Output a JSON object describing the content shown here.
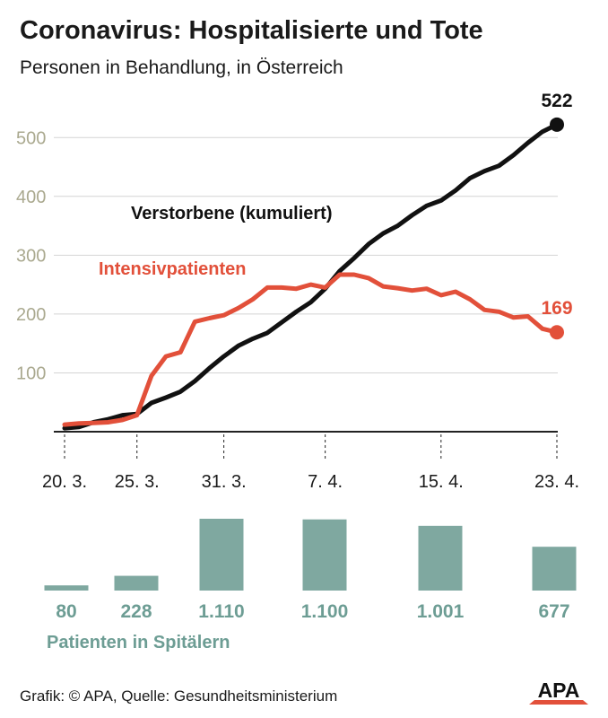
{
  "title": "Coronavirus: Hospitalisierte und Tote",
  "subtitle": "Personen in Behandlung, in Österreich",
  "footer": "Grafik: © APA, Quelle: Gesundheitsministerium",
  "logo_text": "APA",
  "colors": {
    "deaths": "#111111",
    "icu": "#e2503a",
    "bars": "#7fa8a0",
    "bar_label": "#6d9d94",
    "axis_tick": "#aaa98f",
    "grid": "#d4d4d4"
  },
  "chart_data": [
    {
      "type": "line",
      "x": [
        "20.3.",
        "21.3.",
        "22.3.",
        "23.3.",
        "24.3.",
        "25.3.",
        "26.3.",
        "27.3.",
        "28.3.",
        "29.3.",
        "30.3.",
        "31.3.",
        "1.4.",
        "2.4.",
        "3.4.",
        "4.4.",
        "5.4.",
        "6.4.",
        "7.4.",
        "8.4.",
        "9.4.",
        "10.4.",
        "11.4.",
        "12.4.",
        "13.4.",
        "14.4.",
        "15.4.",
        "16.4.",
        "17.4.",
        "18.4.",
        "19.4.",
        "20.4.",
        "21.4.",
        "22.4.",
        "23.4."
      ],
      "x_tick_labels": [
        "20. 3.",
        "25. 3.",
        "31. 3.",
        "7. 4.",
        "15. 4.",
        "23. 4."
      ],
      "x_tick_index": [
        0,
        5,
        11,
        18,
        26,
        34
      ],
      "ylim": [
        0,
        540
      ],
      "y_ticks": [
        100,
        200,
        300,
        400,
        500
      ],
      "grid": true,
      "series": [
        {
          "name": "Verstorbene (kumuliert)",
          "color": "#111111",
          "values": [
            6,
            8,
            16,
            21,
            28,
            30,
            49,
            58,
            68,
            86,
            108,
            128,
            146,
            158,
            168,
            186,
            204,
            220,
            243,
            273,
            295,
            319,
            337,
            350,
            368,
            384,
            393,
            410,
            431,
            443,
            452,
            470,
            491,
            510,
            522
          ],
          "end_label": "522"
        },
        {
          "name": "Intensivpatienten",
          "color": "#e2503a",
          "values": [
            12,
            14,
            15,
            16,
            20,
            28,
            95,
            128,
            135,
            187,
            193,
            198,
            210,
            225,
            245,
            245,
            243,
            250,
            245,
            267,
            267,
            261,
            247,
            244,
            240,
            243,
            232,
            238,
            225,
            207,
            204,
            194,
            196,
            175,
            169
          ],
          "end_label": "169"
        }
      ]
    },
    {
      "type": "bar",
      "title": "Patienten in Spitälern",
      "categories": [
        "20. 3.",
        "25. 3.",
        "31. 3.",
        "7. 4.",
        "15. 4.",
        "23. 4."
      ],
      "values": [
        80,
        228,
        1110,
        1100,
        1001,
        677
      ],
      "value_labels": [
        "80",
        "228",
        "1.110",
        "1.100",
        "1.001",
        "677"
      ]
    }
  ]
}
